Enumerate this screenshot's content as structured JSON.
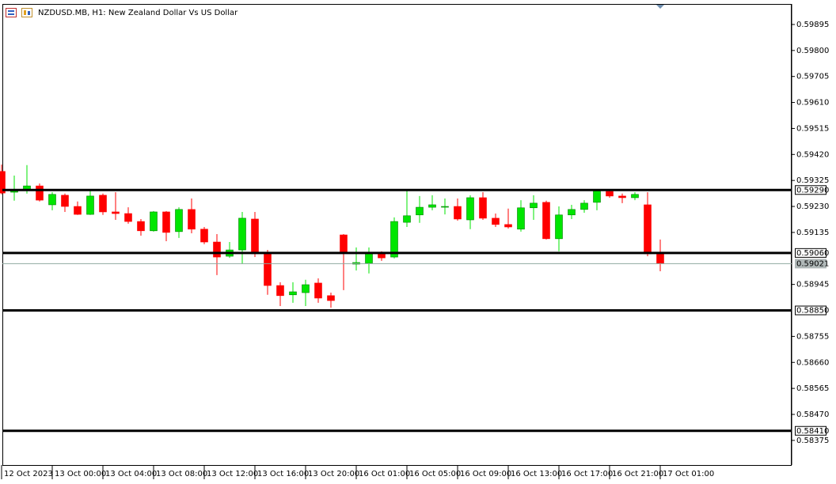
{
  "chart_data": {
    "type": "candlestick",
    "title": "NZDUSD.MB, H1:  New Zealand Dollar Vs US Dollar",
    "categories": [
      "12 Oct 2023",
      null,
      null,
      null,
      "13 Oct 00:00",
      null,
      null,
      null,
      "13 Oct 04:00",
      null,
      null,
      null,
      "13 Oct 08:00",
      null,
      null,
      null,
      "13 Oct 12:00",
      null,
      null,
      null,
      "13 Oct 16:00",
      null,
      null,
      null,
      "13 Oct 20:00",
      null,
      null,
      null,
      "16 Oct 01:00",
      null,
      null,
      null,
      "16 Oct 05:00",
      null,
      null,
      null,
      "16 Oct 09:00",
      null,
      null,
      null,
      "16 Oct 13:00",
      null,
      null,
      null,
      "16 Oct 17:00",
      null,
      null,
      null,
      "16 Oct 21:00",
      null,
      null,
      null,
      "17 Oct 01:00"
    ],
    "open": [
      0.59358,
      0.59282,
      0.59291,
      0.59305,
      0.59236,
      0.59271,
      0.5923,
      0.59201,
      0.59271,
      0.5921,
      0.59204,
      0.59175,
      0.59141,
      0.5921,
      0.59138,
      0.59219,
      0.59147,
      0.591,
      0.59048,
      0.59071,
      0.59184,
      0.5906,
      0.58941,
      0.58907,
      0.58915,
      0.5895,
      0.58904,
      0.59126,
      0.59019,
      0.59022,
      0.5906,
      0.59045,
      0.59172,
      0.59199,
      0.59227,
      0.5923,
      0.5923,
      0.59181,
      0.59262,
      0.59187,
      0.59164,
      0.59147,
      0.59225,
      0.59245,
      0.59112,
      0.59199,
      0.59219,
      0.59245,
      0.59285,
      0.59268,
      0.59262,
      0.59236,
      0.5906
    ],
    "high": [
      0.59383,
      0.59343,
      0.59381,
      0.59314,
      0.59282,
      0.59277,
      0.59248,
      0.59288,
      0.59277,
      0.59282,
      0.59227,
      0.59184,
      0.59213,
      0.59213,
      0.59227,
      0.59259,
      0.59155,
      0.59129,
      0.591,
      0.5921,
      0.5921,
      0.59071,
      0.58953,
      0.58953,
      0.58962,
      0.58967,
      0.58915,
      0.59129,
      0.5908,
      0.5908,
      0.59066,
      0.5919,
      0.59288,
      0.59268,
      0.59271,
      0.59259,
      0.59259,
      0.59271,
      0.59282,
      0.59204,
      0.59222,
      0.59253,
      0.59271,
      0.59251,
      0.5923,
      0.59236,
      0.59253,
      0.59291,
      0.59291,
      0.59277,
      0.59282,
      0.59282,
      0.59109
    ],
    "low": [
      0.59274,
      0.59251,
      0.59277,
      0.59248,
      0.59216,
      0.5921,
      0.59199,
      0.59199,
      0.59199,
      0.59181,
      0.59167,
      0.59123,
      0.59138,
      0.59103,
      0.59115,
      0.59132,
      0.59092,
      0.58979,
      0.59042,
      0.59019,
      0.59045,
      0.58907,
      0.58866,
      0.58878,
      0.58866,
      0.58878,
      0.5886,
      0.58924,
      0.58996,
      0.58985,
      0.59031,
      0.5904,
      0.59155,
      0.5917,
      0.59216,
      0.59201,
      0.59178,
      0.59147,
      0.59181,
      0.59155,
      0.59149,
      0.59138,
      0.59181,
      0.59109,
      0.59066,
      0.59184,
      0.59207,
      0.59216,
      0.59262,
      0.59242,
      0.59253,
      0.59048,
      0.58993
    ],
    "close": [
      0.59279,
      0.59291,
      0.59305,
      0.59253,
      0.59274,
      0.5923,
      0.59201,
      0.59268,
      0.5921,
      0.59204,
      0.59175,
      0.59141,
      0.5921,
      0.59135,
      0.59219,
      0.59147,
      0.591,
      0.59045,
      0.59071,
      0.59187,
      0.59057,
      0.58941,
      0.58904,
      0.58918,
      0.58944,
      0.58895,
      0.58886,
      0.59063,
      0.59025,
      0.5906,
      0.59042,
      0.59175,
      0.59196,
      0.59227,
      0.59236,
      0.5923,
      0.59184,
      0.59262,
      0.59187,
      0.59164,
      0.59155,
      0.59225,
      0.59242,
      0.59112,
      0.59199,
      0.59219,
      0.59242,
      0.59288,
      0.59268,
      0.59262,
      0.59274,
      0.59057,
      0.59021
    ],
    "up_color": "#00e600",
    "down_color": "#ff0000",
    "ylim": [
      0.58285,
      0.5997
    ],
    "yticks": [
      {
        "value": 0.59895,
        "label": "0.59895"
      },
      {
        "value": 0.598,
        "label": "0.59800"
      },
      {
        "value": 0.59705,
        "label": "0.59705"
      },
      {
        "value": 0.5961,
        "label": "0.59610"
      },
      {
        "value": 0.59515,
        "label": "0.59515"
      },
      {
        "value": 0.5942,
        "label": "0.59420"
      },
      {
        "value": 0.59325,
        "label": "0.59325"
      },
      {
        "value": 0.5923,
        "label": "0.59230"
      },
      {
        "value": 0.59135,
        "label": "0.59135"
      },
      {
        "value": 0.58945,
        "label": "0.58945"
      },
      {
        "value": 0.58755,
        "label": "0.58755"
      },
      {
        "value": 0.5866,
        "label": "0.58660"
      },
      {
        "value": 0.58565,
        "label": "0.58565"
      },
      {
        "value": 0.5847,
        "label": "0.58470"
      },
      {
        "value": 0.58375,
        "label": "0.58375"
      }
    ],
    "levels": [
      {
        "value": 0.5929,
        "label": "0.59290"
      },
      {
        "value": 0.5906,
        "label": "0.59060"
      },
      {
        "value": 0.5885,
        "label": "0.58850"
      },
      {
        "value": 0.5841,
        "label": "0.58410"
      }
    ],
    "current_price": {
      "value": 0.59021,
      "label": "0.59021"
    }
  }
}
